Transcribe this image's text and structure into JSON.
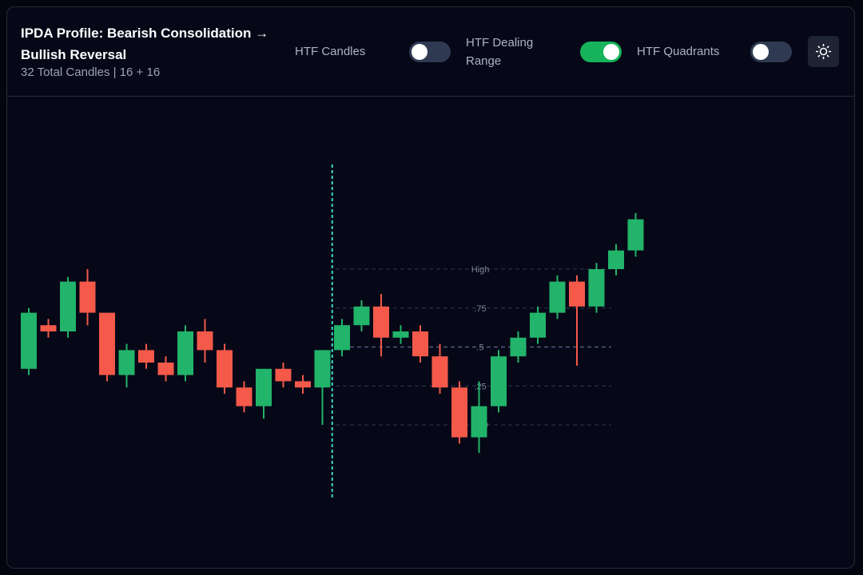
{
  "header": {
    "title": "IPDA Profile: Bearish Consolidation → Bullish Reversal",
    "subtitle": "32 Total Candles | 16 + 16"
  },
  "toggles": [
    {
      "label": "HTF Candles",
      "on": false
    },
    {
      "label": "HTF Dealing Range",
      "on": true
    },
    {
      "label": "HTF Quadrants",
      "on": false
    }
  ],
  "chart_data": {
    "type": "candlestick",
    "up_color": "#21b46a",
    "down_color": "#f4594a",
    "open": [
      0.36,
      0.64,
      0.6,
      0.92,
      0.72,
      0.32,
      0.48,
      0.4,
      0.32,
      0.6,
      0.48,
      0.24,
      0.12,
      0.36,
      0.28,
      0.24,
      0.48,
      0.64,
      0.76,
      0.56,
      0.6,
      0.44,
      0.24,
      -0.08,
      0.12,
      0.44,
      0.56,
      0.72,
      0.92,
      0.76,
      1.0,
      1.12
    ],
    "high": [
      0.75,
      0.68,
      0.95,
      1.0,
      0.72,
      0.52,
      0.52,
      0.44,
      0.64,
      0.68,
      0.52,
      0.28,
      0.36,
      0.4,
      0.32,
      0.48,
      0.68,
      0.8,
      0.84,
      0.64,
      0.64,
      0.52,
      0.28,
      0.28,
      0.48,
      0.6,
      0.76,
      0.96,
      0.96,
      1.04,
      1.16,
      1.36
    ],
    "low": [
      0.32,
      0.56,
      0.56,
      0.64,
      0.28,
      0.24,
      0.36,
      0.28,
      0.28,
      0.4,
      0.2,
      0.08,
      0.04,
      0.24,
      0.2,
      0,
      0.44,
      0.6,
      0.44,
      0.52,
      0.4,
      0.2,
      -0.12,
      -0.18,
      0.08,
      0.4,
      0.52,
      0.68,
      0.38,
      0.72,
      0.96,
      1.08
    ],
    "close": [
      0.72,
      0.6,
      0.92,
      0.72,
      0.32,
      0.48,
      0.4,
      0.32,
      0.6,
      0.48,
      0.24,
      0.12,
      0.36,
      0.28,
      0.24,
      0.48,
      0.64,
      0.76,
      0.56,
      0.6,
      0.44,
      0.24,
      -0.08,
      0.12,
      0.44,
      0.56,
      0.72,
      0.92,
      0.76,
      1.0,
      1.12,
      1.32
    ],
    "levels": [
      {
        "value": 1,
        "label": "High"
      },
      {
        "value": 0.75,
        "label": ".75"
      },
      {
        "value": 0.5,
        "label": ".5"
      },
      {
        "value": 0.25,
        "label": ".25"
      },
      {
        "value": 0,
        "label": "Low"
      }
    ]
  }
}
